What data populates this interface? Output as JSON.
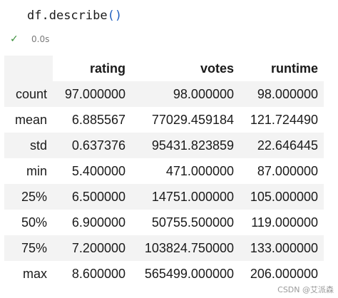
{
  "cell": {
    "obj": "df",
    "method": ".describe",
    "parens": "()",
    "check_icon": "✓",
    "exec_time": "0.0s"
  },
  "table": {
    "index_header": "",
    "columns": [
      "rating",
      "votes",
      "runtime"
    ],
    "rows": [
      {
        "label": "count",
        "values": [
          "97.000000",
          "98.000000",
          "98.000000"
        ]
      },
      {
        "label": "mean",
        "values": [
          "6.885567",
          "77029.459184",
          "121.724490"
        ]
      },
      {
        "label": "std",
        "values": [
          "0.637376",
          "95431.823859",
          "22.646445"
        ]
      },
      {
        "label": "min",
        "values": [
          "5.400000",
          "471.000000",
          "87.000000"
        ]
      },
      {
        "label": "25%",
        "values": [
          "6.500000",
          "14751.000000",
          "105.000000"
        ]
      },
      {
        "label": "50%",
        "values": [
          "6.900000",
          "50755.500000",
          "119.000000"
        ]
      },
      {
        "label": "75%",
        "values": [
          "7.200000",
          "103824.750000",
          "133.000000"
        ]
      },
      {
        "label": "max",
        "values": [
          "8.600000",
          "565499.000000",
          "206.000000"
        ]
      }
    ]
  },
  "watermark": "CSDN @艾派森"
}
